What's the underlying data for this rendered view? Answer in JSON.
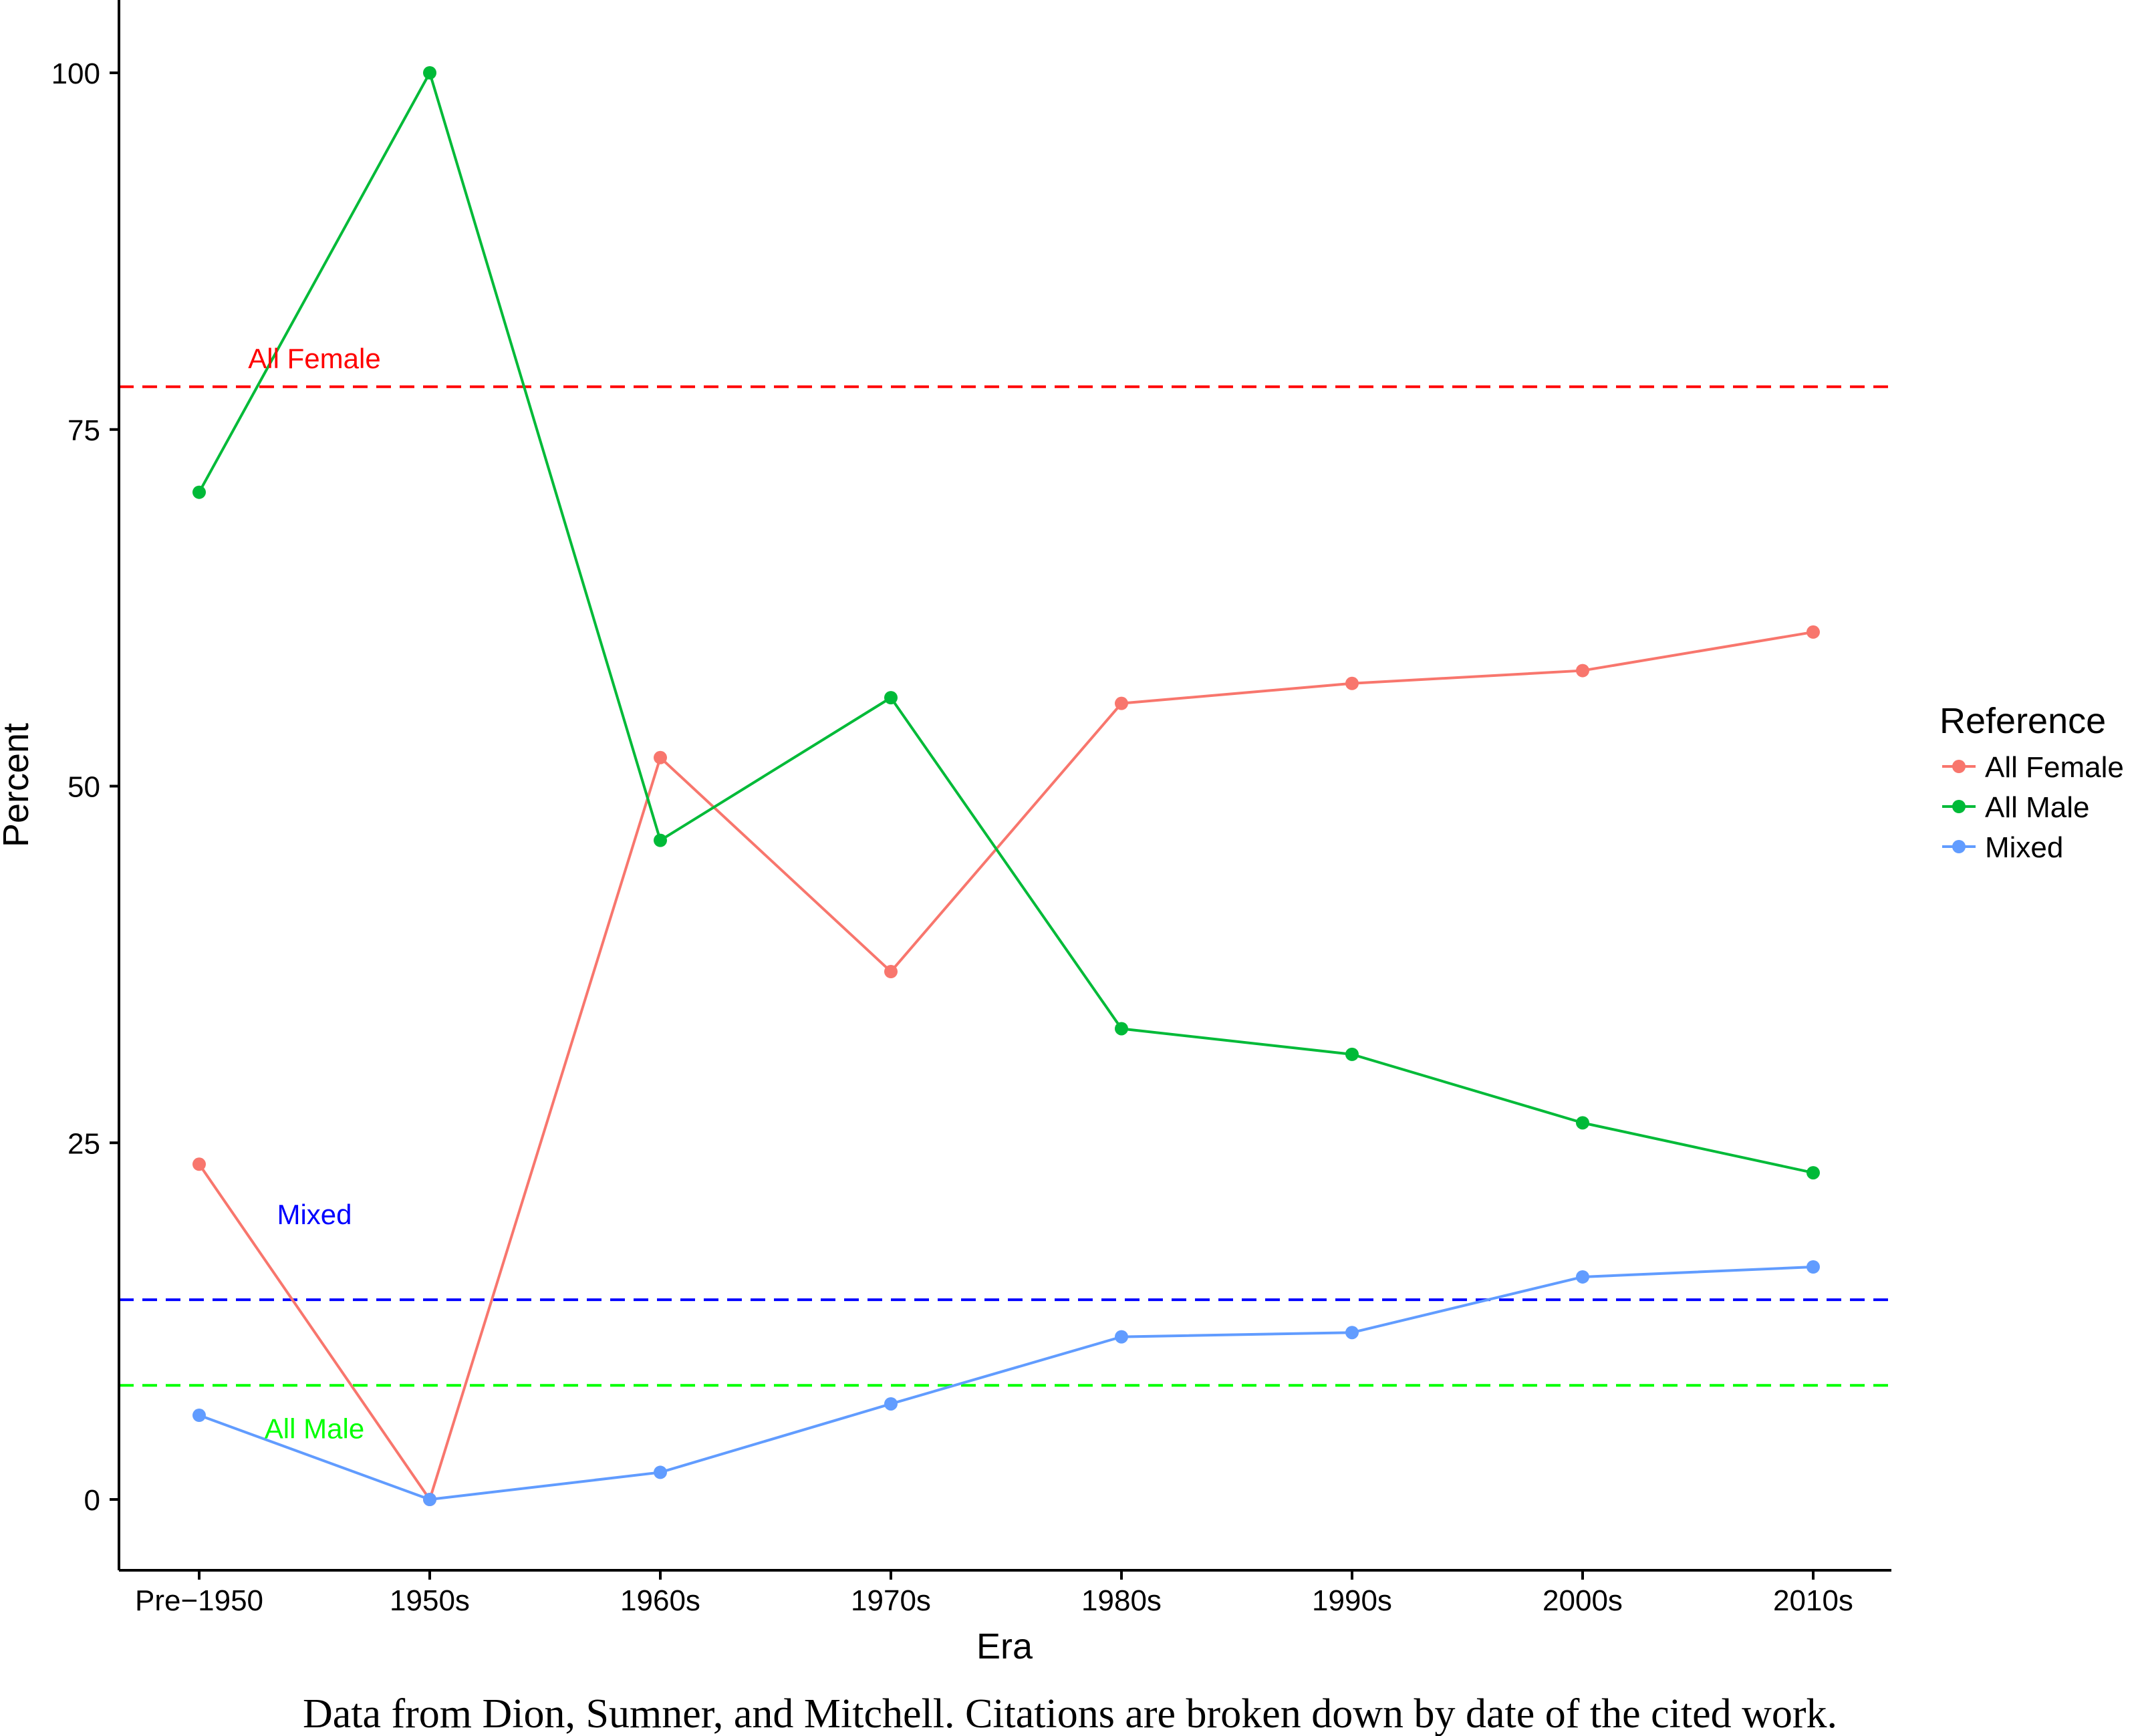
{
  "chart_data": {
    "type": "line",
    "xlabel": "Era",
    "ylabel": "Percent",
    "categories": [
      "Pre−1950",
      "1950s",
      "1960s",
      "1970s",
      "1980s",
      "1990s",
      "2000s",
      "2010s"
    ],
    "ylim": [
      -5,
      105
    ],
    "yticks": [
      0,
      25,
      50,
      75,
      100
    ],
    "grid": false,
    "legend": {
      "title": "Reference",
      "placement": "right"
    },
    "series": [
      {
        "name": "All Female",
        "color": "#F8766D",
        "values": [
          23.5,
          0,
          52,
          37,
          55.8,
          57.2,
          58.1,
          60.8
        ]
      },
      {
        "name": "All Male",
        "color": "#00BA38",
        "values": [
          70.6,
          100,
          46.2,
          56.2,
          33,
          31.2,
          26.4,
          22.9
        ]
      },
      {
        "name": "Mixed",
        "color": "#619CFF",
        "values": [
          5.9,
          0,
          1.9,
          6.7,
          11.4,
          11.7,
          15.6,
          16.3
        ]
      }
    ],
    "reference_lines": [
      {
        "label": "All Female",
        "value": 78,
        "color": "#FF0000",
        "label_category": 0.5,
        "label_value": 80
      },
      {
        "label": "Mixed",
        "value": 14,
        "color": "#0000FF",
        "label_category": 0.5,
        "label_value": 20
      },
      {
        "label": "All Male",
        "value": 8,
        "color": "#00FF00",
        "label_category": 0.5,
        "label_value": 5
      }
    ],
    "caption": "Data from Dion, Sumner, and Mitchell. Citations are broken down by date of the cited work."
  }
}
